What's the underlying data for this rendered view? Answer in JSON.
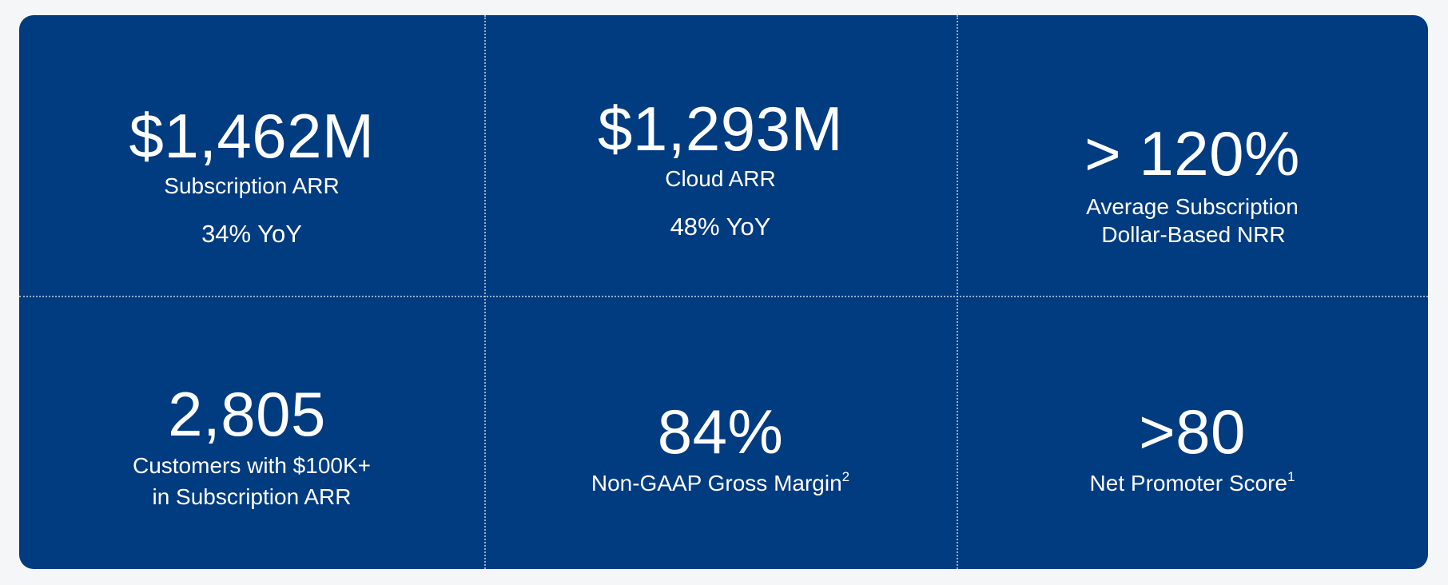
{
  "metrics": [
    {
      "value": "$1,462M",
      "label": "Subscription ARR",
      "detail": "34% YoY"
    },
    {
      "value": "$1,293M",
      "label": "Cloud ARR",
      "detail": "48% YoY"
    },
    {
      "value": "> 120%",
      "label_line1": "Average Subscription",
      "label_line2": "Dollar-Based NRR"
    },
    {
      "value": "2,805",
      "label_line1": "Customers with $100K+",
      "label_line2": "in Subscription ARR"
    },
    {
      "value": "84%",
      "label": "Non-GAAP Gross Margin",
      "footnote": "2"
    },
    {
      "value": ">80",
      "label": "Net Promoter Score",
      "footnote": "1"
    }
  ]
}
